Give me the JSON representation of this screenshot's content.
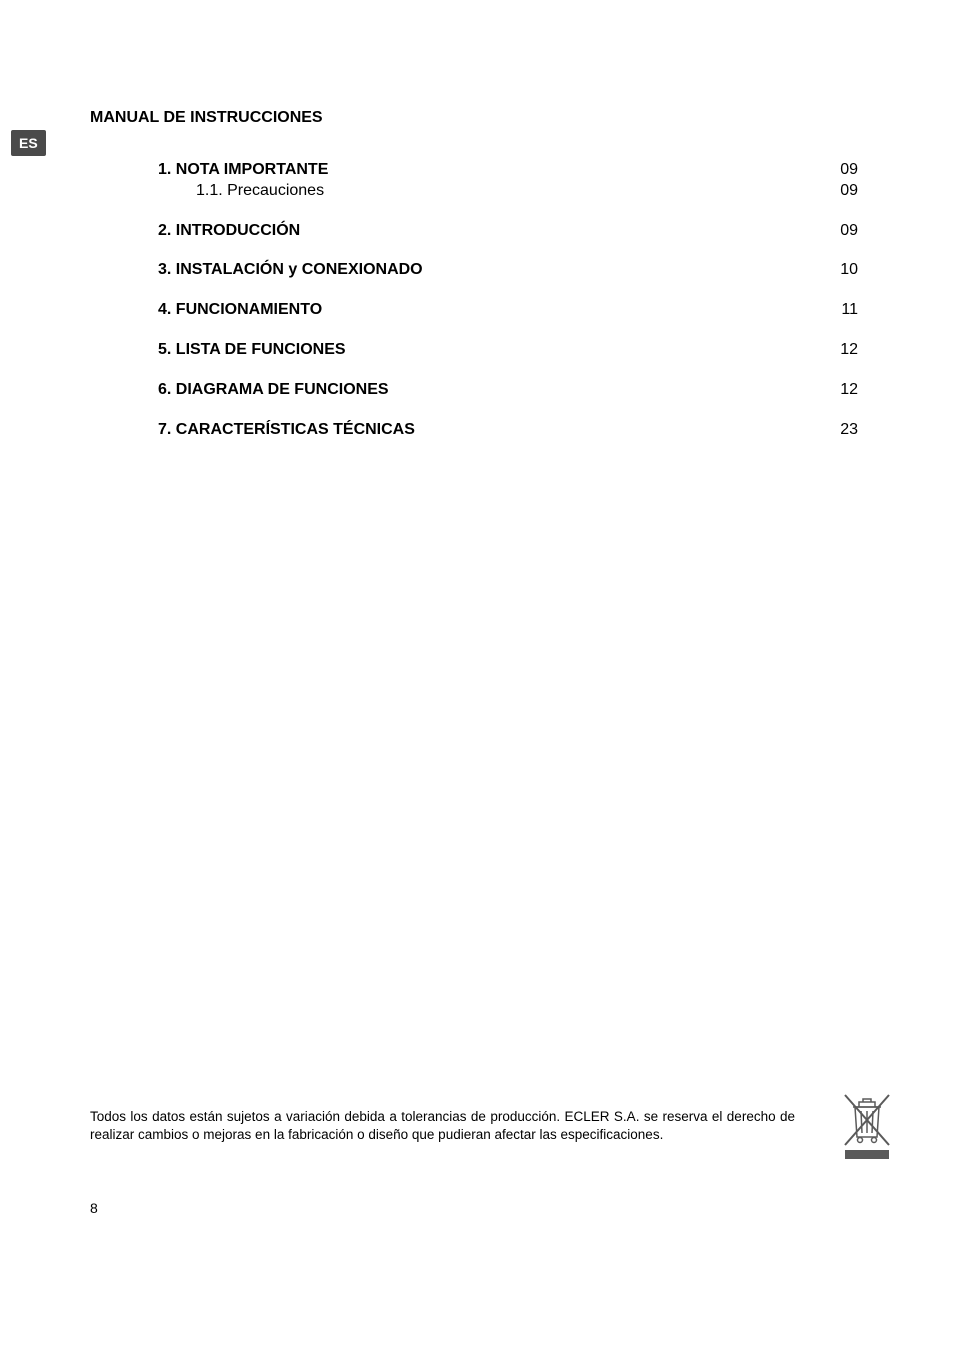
{
  "lang_tab": "ES",
  "manual_title": "MANUAL DE INSTRUCCIONES",
  "toc": [
    {
      "label": "1. NOTA IMPORTANTE",
      "page": "09",
      "bold": true,
      "gap": false,
      "sub": false
    },
    {
      "label": "1.1. Precauciones",
      "page": "09",
      "bold": false,
      "gap": false,
      "sub": true
    },
    {
      "label": "2. INTRODUCCIÓN",
      "page": "09",
      "bold": true,
      "gap": true,
      "sub": false
    },
    {
      "label": "3. INSTALACIÓN y CONEXIONADO",
      "page": "10",
      "bold": true,
      "gap": true,
      "sub": false
    },
    {
      "label": "4. FUNCIONAMIENTO",
      "page": "11",
      "bold": true,
      "gap": true,
      "sub": false
    },
    {
      "label": "5. LISTA DE FUNCIONES",
      "page": "12",
      "bold": true,
      "gap": true,
      "sub": false
    },
    {
      "label": "6. DIAGRAMA DE FUNCIONES",
      "page": "12",
      "bold": true,
      "gap": true,
      "sub": false
    },
    {
      "label": "7. CARACTERÍSTICAS TÉCNICAS",
      "page": "23",
      "bold": true,
      "gap": true,
      "sub": false
    }
  ],
  "footer_text": "Todos los datos están sujetos a variación debida a tolerancias de producción. ECLER S.A. se reserva el derecho de realizar cambios o mejoras en la fabricación o diseño que pudieran afectar las especificaciones.",
  "page_number": "8",
  "colors": {
    "text": "#000000",
    "background": "#ffffff",
    "tab_bg": "#4a4a4a",
    "tab_text": "#ffffff",
    "icon_stroke": "#5a5a5a",
    "icon_bar": "#5a5a5a"
  }
}
